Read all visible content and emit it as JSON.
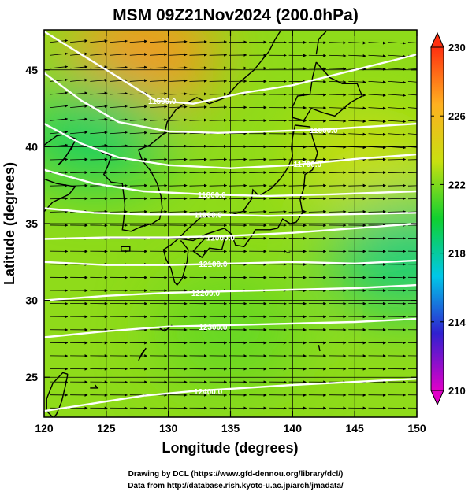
{
  "chart_data": {
    "type": "heatmap",
    "title": "MSM 09Z21Nov2024 (200.0hPa)",
    "xlabel": "Longitude (degrees)",
    "ylabel": "Latitude  (degrees)",
    "xlim": [
      120,
      150
    ],
    "ylim": [
      22.4,
      47.6
    ],
    "xticks": [
      120,
      125,
      130,
      135,
      140,
      145,
      150
    ],
    "yticks": [
      25,
      30,
      35,
      40,
      45
    ],
    "colorbar": {
      "min": 210,
      "max": 230,
      "ticks": [
        210,
        214,
        218,
        222,
        226,
        230
      ],
      "colors": [
        "#e000c8",
        "#3020d0",
        "#00c8e8",
        "#10d030",
        "#c8e010",
        "#ffb020",
        "#ff3010"
      ]
    },
    "temperature_features": [
      {
        "lon": 128,
        "lat": 46,
        "value": 227.5
      },
      {
        "lon": 124,
        "lat": 41,
        "value": 219
      },
      {
        "lon": 146,
        "lat": 39,
        "value": 223.5
      },
      {
        "lon": 149,
        "lat": 33,
        "value": 218.5
      },
      {
        "lon": 135,
        "lat": 28,
        "value": 221.5
      }
    ],
    "contours": [
      {
        "label": "11500.0",
        "label_lon": 129.5,
        "label_lat": 43.0,
        "points": [
          [
            120,
            47.5
          ],
          [
            123,
            46
          ],
          [
            126,
            44.5
          ],
          [
            129,
            43
          ],
          [
            132,
            42.8
          ],
          [
            136,
            43.5
          ],
          [
            140,
            44
          ],
          [
            145,
            45
          ],
          [
            150,
            46
          ]
        ]
      },
      {
        "label": "11600.0",
        "label_lon": 142.5,
        "label_lat": 41.1,
        "points": [
          [
            120,
            44.8
          ],
          [
            123,
            43
          ],
          [
            126,
            41.6
          ],
          [
            130,
            41.0
          ],
          [
            134,
            40.9
          ],
          [
            138,
            41.0
          ],
          [
            142,
            41.1
          ],
          [
            146,
            41.3
          ],
          [
            150,
            41.5
          ]
        ]
      },
      {
        "label": "11700.0",
        "label_lon": 141.2,
        "label_lat": 38.9,
        "points": [
          [
            120,
            41.5
          ],
          [
            123,
            40.2
          ],
          [
            126,
            39.3
          ],
          [
            130,
            38.8
          ],
          [
            135,
            38.6
          ],
          [
            140,
            38.8
          ],
          [
            145,
            39.2
          ],
          [
            150,
            39.5
          ]
        ]
      },
      {
        "label": "11800.0",
        "label_lon": 133.5,
        "label_lat": 36.9,
        "points": [
          [
            120,
            38.5
          ],
          [
            124,
            37.6
          ],
          [
            128,
            37.1
          ],
          [
            133,
            36.9
          ],
          [
            138,
            36.8
          ],
          [
            143,
            36.9
          ],
          [
            150,
            37.1
          ]
        ]
      },
      {
        "label": "11900.0",
        "label_lon": 133.2,
        "label_lat": 35.6,
        "points": [
          [
            120,
            36.0
          ],
          [
            124,
            35.7
          ],
          [
            128,
            35.6
          ],
          [
            133,
            35.6
          ],
          [
            138,
            35.5
          ],
          [
            144,
            35.6
          ],
          [
            150,
            35.7
          ]
        ]
      },
      {
        "label": "12000.0",
        "label_lon": 134.2,
        "label_lat": 34.1,
        "points": [
          [
            120,
            34.0
          ],
          [
            125,
            34.1
          ],
          [
            130,
            34.1
          ],
          [
            135,
            34.2
          ],
          [
            140,
            34.4
          ],
          [
            145,
            34.7
          ],
          [
            150,
            35.0
          ]
        ]
      },
      {
        "label": "12100.0",
        "label_lon": 133.6,
        "label_lat": 32.4,
        "points": [
          [
            120,
            32.5
          ],
          [
            125,
            32.3
          ],
          [
            130,
            32.3
          ],
          [
            135,
            32.4
          ],
          [
            140,
            32.5
          ],
          [
            145,
            32.4
          ],
          [
            150,
            32.6
          ]
        ]
      },
      {
        "label": "12200.0",
        "label_lon": 133.0,
        "label_lat": 30.5,
        "points": [
          [
            120,
            30.0
          ],
          [
            125,
            30.3
          ],
          [
            130,
            30.5
          ],
          [
            135,
            30.6
          ],
          [
            140,
            30.7
          ],
          [
            145,
            30.8
          ],
          [
            150,
            31.0
          ]
        ]
      },
      {
        "label": "12300.0",
        "label_lon": 133.6,
        "label_lat": 28.3,
        "points": [
          [
            120,
            27.6
          ],
          [
            125,
            28.0
          ],
          [
            130,
            28.3
          ],
          [
            135,
            28.4
          ],
          [
            140,
            28.5
          ],
          [
            145,
            28.6
          ],
          [
            150,
            28.8
          ]
        ]
      },
      {
        "label": "12400.0",
        "label_lon": 133.2,
        "label_lat": 24.1,
        "points": [
          [
            120,
            22.8
          ],
          [
            124,
            23.3
          ],
          [
            128,
            23.8
          ],
          [
            132,
            24.1
          ],
          [
            136,
            24.3
          ],
          [
            140,
            24.5
          ],
          [
            145,
            24.7
          ],
          [
            150,
            24.9
          ]
        ]
      }
    ],
    "wind": "westerly vectors"
  },
  "footer": {
    "line1": "Drawing by DCL (https://www.gfd-dennou.org/library/dcl/)",
    "line2": "Data from http://database.rish.kyoto-u.ac.jp/arch/jmadata/"
  }
}
